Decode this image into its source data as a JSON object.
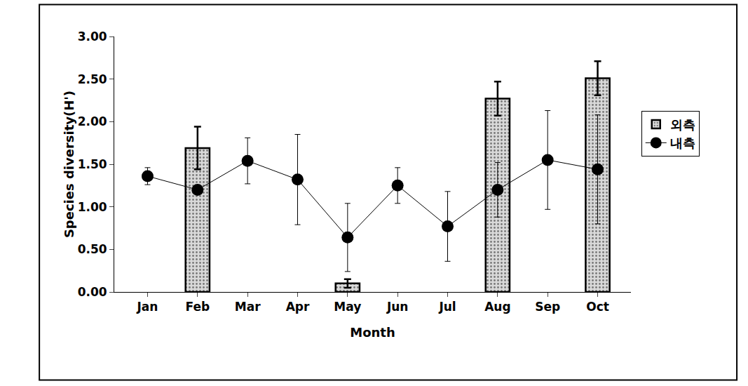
{
  "chart_data": {
    "type": "bar",
    "x_label": "Month",
    "y_label": "Species diversity(H')",
    "categories": [
      "Jan",
      "Feb",
      "Mar",
      "Apr",
      "May",
      "Jun",
      "Jul",
      "Aug",
      "Sep",
      "Oct"
    ],
    "series": [
      {
        "name": "외측",
        "type": "bar",
        "color": "#d9d9d9",
        "values": [
          null,
          1.69,
          null,
          null,
          0.1,
          null,
          null,
          2.27,
          null,
          2.51
        ],
        "error": [
          null,
          0.25,
          null,
          null,
          0.05,
          null,
          null,
          0.2,
          null,
          0.2
        ]
      },
      {
        "name": "내측",
        "type": "line",
        "color": "#000000",
        "marker": "circle",
        "line_style": "solid",
        "values": [
          1.36,
          1.2,
          1.54,
          1.32,
          0.64,
          1.25,
          0.77,
          1.2,
          1.55,
          1.44
        ],
        "error": [
          0.1,
          null,
          0.27,
          0.53,
          0.4,
          0.21,
          0.41,
          0.32,
          0.58,
          0.64
        ]
      }
    ],
    "ylim": [
      0,
      3
    ],
    "yticks": [
      {
        "value": 0,
        "label": "0.00"
      },
      {
        "value": 0.5,
        "label": "0.50"
      },
      {
        "value": 1,
        "label": "1.00"
      },
      {
        "value": 1.5,
        "label": "1.50"
      },
      {
        "value": 2,
        "label": "2.00"
      },
      {
        "value": 2.5,
        "label": "2.50"
      },
      {
        "value": 3,
        "label": "3.00"
      }
    ],
    "grid": false,
    "legend": "right"
  }
}
